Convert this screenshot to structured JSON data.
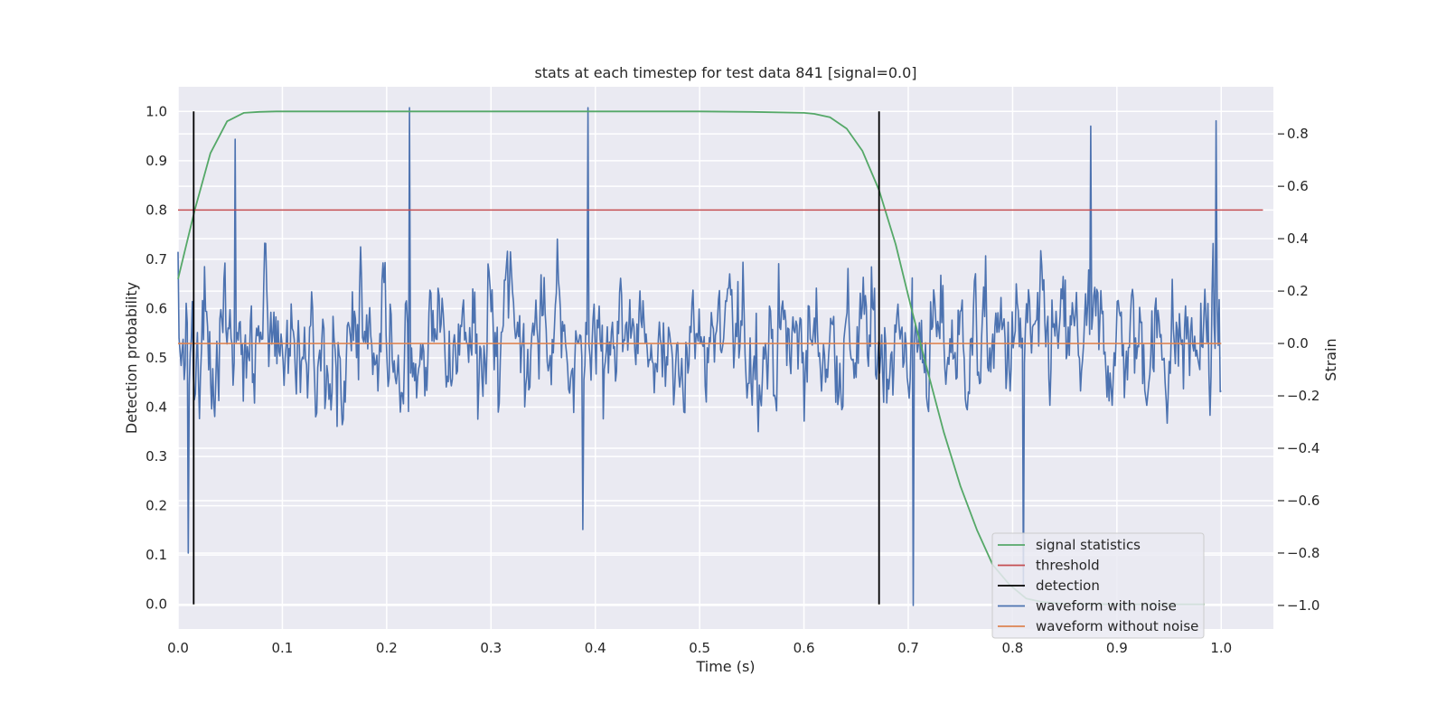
{
  "chart_data": {
    "type": "line",
    "title": "stats at each timestep for test data 841 [signal=0.0]",
    "xlabel": "Time (s)",
    "ylabel": "Detection probability",
    "y2label": "Strain",
    "xlim": [
      0.0,
      1.05
    ],
    "ylim": [
      -0.05,
      1.05
    ],
    "y2lim": [
      -1.09,
      0.98
    ],
    "xticks": [
      "0.0",
      "0.1",
      "0.2",
      "0.3",
      "0.4",
      "0.5",
      "0.6",
      "0.7",
      "0.8",
      "0.9",
      "1.0"
    ],
    "yticks": [
      "0.0",
      "0.1",
      "0.2",
      "0.3",
      "0.4",
      "0.5",
      "0.6",
      "0.7",
      "0.8",
      "0.9",
      "1.0"
    ],
    "y2ticks": [
      "−1.0",
      "−0.8",
      "−0.6",
      "−0.4",
      "−0.2",
      "0.0",
      "0.2",
      "0.4",
      "0.6",
      "0.8"
    ],
    "grid": true,
    "legend_position": "lower right",
    "threshold": 0.8,
    "detections": [
      0.015,
      0.672
    ],
    "series": [
      {
        "name": "signal statistics",
        "axis": "left",
        "color": "#55a868",
        "x": [
          0.0,
          0.016,
          0.031,
          0.047,
          0.063,
          0.078,
          0.094,
          0.2,
          0.3,
          0.4,
          0.5,
          0.55,
          0.6,
          0.61,
          0.625,
          0.641,
          0.656,
          0.672,
          0.688,
          0.703,
          0.719,
          0.734,
          0.75,
          0.766,
          0.781,
          0.797,
          0.813,
          0.828,
          0.844,
          0.86,
          0.9,
          0.95,
          0.984
        ],
        "values": [
          0.66,
          0.8,
          0.915,
          0.98,
          0.997,
          0.999,
          1.0,
          1.0,
          1.0,
          1.0,
          1.0,
          0.999,
          0.997,
          0.995,
          0.988,
          0.965,
          0.92,
          0.84,
          0.73,
          0.6,
          0.47,
          0.35,
          0.24,
          0.15,
          0.08,
          0.04,
          0.012,
          0.005,
          0.002,
          0.001,
          0.0,
          0.0,
          0.0
        ]
      },
      {
        "name": "threshold",
        "axis": "left",
        "color": "#c44e52",
        "x": [
          0.0,
          1.04
        ],
        "values": [
          0.8,
          0.8
        ]
      },
      {
        "name": "detection",
        "axis": "left",
        "color": "#000000",
        "x": [
          0.015,
          0.672
        ],
        "values": [
          1.0,
          1.0
        ]
      },
      {
        "name": "waveform with noise",
        "axis": "right",
        "color": "#4c72b0",
        "x_range": [
          0.0,
          1.0
        ],
        "n_points": 1024,
        "peaks": [
          {
            "x": 0.0,
            "v": 0.35
          },
          {
            "x": 0.01,
            "v": -0.8
          },
          {
            "x": 0.055,
            "v": 0.78
          },
          {
            "x": 0.222,
            "v": 0.9
          },
          {
            "x": 0.393,
            "v": 0.9
          },
          {
            "x": 0.388,
            "v": -0.71
          },
          {
            "x": 0.705,
            "v": -1.0
          },
          {
            "x": 0.81,
            "v": -0.93
          },
          {
            "x": 0.875,
            "v": 0.83
          },
          {
            "x": 0.995,
            "v": 0.85
          }
        ]
      },
      {
        "name": "waveform without noise",
        "axis": "right",
        "color": "#dd8452",
        "x": [
          0.0,
          1.0
        ],
        "values": [
          0.0,
          0.0
        ]
      }
    ]
  }
}
